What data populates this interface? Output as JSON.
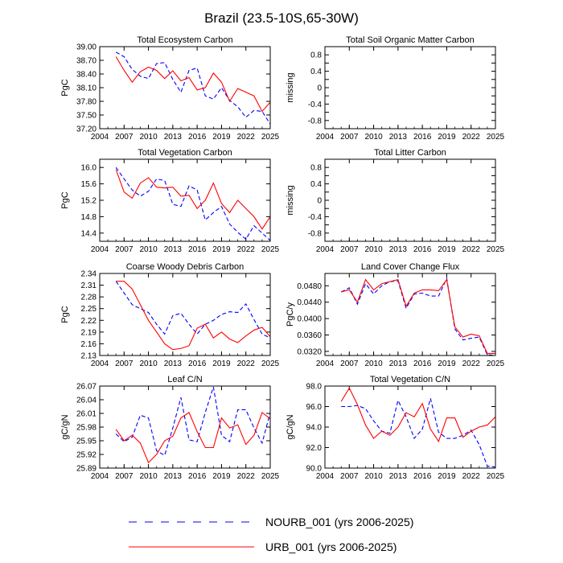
{
  "page": {
    "title": "Brazil (23.5-10S,65-30W)"
  },
  "legend": [
    {
      "label": "NOURB_001 (yrs 2006-2025)",
      "color": "#0000ff",
      "dash": true
    },
    {
      "label": "URB_001 (yrs 2006-2025)",
      "color": "#ff0000",
      "dash": false
    }
  ],
  "chart_data": [
    {
      "type": "line",
      "title": "Total Ecosystem Carbon",
      "ylabel": "PgC",
      "xlim": [
        2004,
        2025
      ],
      "ylim": [
        37.2,
        39.0
      ],
      "xticks": [
        "2004",
        "2007",
        "2010",
        "2013",
        "2016",
        "2019",
        "2022",
        "2025"
      ],
      "yticks": [
        "37.20",
        "37.50",
        "37.80",
        "38.10",
        "38.40",
        "38.70",
        "39.00"
      ],
      "x": [
        2006,
        2007,
        2008,
        2009,
        2010,
        2011,
        2012,
        2013,
        2014,
        2015,
        2016,
        2017,
        2018,
        2019,
        2020,
        2021,
        2022,
        2023,
        2024,
        2025
      ],
      "series": [
        {
          "name": "NOURB_001",
          "values": [
            38.88,
            38.78,
            38.5,
            38.35,
            38.3,
            38.63,
            38.65,
            38.28,
            38.0,
            38.48,
            38.53,
            37.92,
            37.85,
            38.1,
            37.82,
            37.68,
            37.45,
            37.6,
            37.58,
            37.3
          ]
        },
        {
          "name": "URB_001",
          "values": [
            38.78,
            38.48,
            38.22,
            38.45,
            38.55,
            38.48,
            38.3,
            38.47,
            38.25,
            38.32,
            38.05,
            38.1,
            38.42,
            38.22,
            37.8,
            38.08,
            38.0,
            37.92,
            37.58,
            37.78
          ]
        }
      ]
    },
    {
      "type": "line",
      "title": "Total Soil Organic Matter Carbon",
      "ylabel": "missing",
      "xlim": [
        2004,
        2025
      ],
      "ylim": [
        -1.0,
        1.0
      ],
      "xticks": [
        "2004",
        "2007",
        "2010",
        "2013",
        "2016",
        "2019",
        "2022",
        "2025"
      ],
      "yticks": [
        "-0.8",
        "-0.4",
        "0",
        "0.4",
        "0.8"
      ],
      "yticks_hidden": [
        "-0.6",
        "-0.2",
        "0.2",
        "0.6"
      ],
      "series": []
    },
    {
      "type": "line",
      "title": "Total Vegetation Carbon",
      "ylabel": "PgC",
      "xlim": [
        2004,
        2025
      ],
      "ylim": [
        14.2,
        16.2
      ],
      "xticks": [
        "2004",
        "2007",
        "2010",
        "2013",
        "2016",
        "2019",
        "2022",
        "2025"
      ],
      "yticks": [
        "14.4",
        "14.8",
        "15.2",
        "15.6",
        "16.0"
      ],
      "x": [
        2006,
        2007,
        2008,
        2009,
        2010,
        2011,
        2012,
        2013,
        2014,
        2015,
        2016,
        2017,
        2018,
        2019,
        2020,
        2021,
        2022,
        2023,
        2024,
        2025
      ],
      "series": [
        {
          "name": "NOURB_001",
          "values": [
            16.0,
            15.72,
            15.45,
            15.3,
            15.42,
            15.72,
            15.68,
            15.1,
            15.05,
            15.55,
            15.45,
            14.72,
            14.9,
            15.05,
            14.62,
            14.42,
            14.25,
            14.58,
            14.4,
            14.22
          ]
        },
        {
          "name": "URB_001",
          "values": [
            15.95,
            15.4,
            15.25,
            15.62,
            15.75,
            15.52,
            15.5,
            15.52,
            15.3,
            15.32,
            15.0,
            15.2,
            15.62,
            15.12,
            14.9,
            15.2,
            15.0,
            14.8,
            14.5,
            14.8
          ]
        }
      ]
    },
    {
      "type": "line",
      "title": "Total Litter Carbon",
      "ylabel": "missing",
      "xlim": [
        2004,
        2025
      ],
      "ylim": [
        -1.0,
        1.0
      ],
      "xticks": [
        "2004",
        "2007",
        "2010",
        "2013",
        "2016",
        "2019",
        "2022",
        "2025"
      ],
      "yticks": [
        "-0.8",
        "-0.4",
        "0",
        "0.4",
        "0.8"
      ],
      "yticks_hidden": [
        "-0.6",
        "-0.2",
        "0.2",
        "0.6"
      ],
      "series": []
    },
    {
      "type": "line",
      "title": "Coarse Woody Debris Carbon",
      "ylabel": "PgC",
      "xlim": [
        2004,
        2025
      ],
      "ylim": [
        2.13,
        2.34
      ],
      "xticks": [
        "2004",
        "2007",
        "2010",
        "2013",
        "2016",
        "2019",
        "2022",
        "2025"
      ],
      "yticks": [
        "2.13",
        "2.16",
        "2.19",
        "2.22",
        "2.25",
        "2.28",
        "2.31",
        "2.34"
      ],
      "x": [
        2006,
        2007,
        2008,
        2009,
        2010,
        2011,
        2012,
        2013,
        2014,
        2015,
        2016,
        2017,
        2018,
        2019,
        2020,
        2021,
        2022,
        2023,
        2024,
        2025
      ],
      "series": [
        {
          "name": "NOURB_001",
          "values": [
            2.32,
            2.29,
            2.26,
            2.25,
            2.24,
            2.21,
            2.185,
            2.232,
            2.238,
            2.21,
            2.185,
            2.21,
            2.22,
            2.235,
            2.242,
            2.24,
            2.262,
            2.222,
            2.185,
            2.175
          ]
        },
        {
          "name": "URB_001",
          "values": [
            2.32,
            2.32,
            2.3,
            2.26,
            2.22,
            2.19,
            2.16,
            2.145,
            2.148,
            2.155,
            2.2,
            2.21,
            2.175,
            2.19,
            2.172,
            2.163,
            2.18,
            2.195,
            2.202,
            2.178
          ]
        }
      ]
    },
    {
      "type": "line",
      "title": "Land Cover Change Flux",
      "ylabel": "PgC/y",
      "xlim": [
        2004,
        2025
      ],
      "ylim": [
        0.031,
        0.051
      ],
      "xticks": [
        "2004",
        "2007",
        "2010",
        "2013",
        "2016",
        "2019",
        "2022",
        "2025"
      ],
      "yticks": [
        "0.0320",
        "0.0360",
        "0.0400",
        "0.0440",
        "0.0480"
      ],
      "x": [
        2006,
        2007,
        2008,
        2009,
        2010,
        2011,
        2012,
        2013,
        2014,
        2015,
        2016,
        2017,
        2018,
        2019,
        2020,
        2021,
        2022,
        2023,
        2024,
        2025
      ],
      "series": [
        {
          "name": "NOURB_001",
          "values": [
            0.0465,
            0.0475,
            0.0435,
            0.0485,
            0.046,
            0.048,
            0.049,
            0.0492,
            0.0425,
            0.046,
            0.0462,
            0.0455,
            0.0455,
            0.0498,
            0.0375,
            0.0348,
            0.0352,
            0.0355,
            0.0312,
            0.031
          ]
        },
        {
          "name": "URB_001",
          "values": [
            0.0465,
            0.047,
            0.044,
            0.0495,
            0.047,
            0.0485,
            0.049,
            0.0495,
            0.043,
            0.0462,
            0.047,
            0.047,
            0.0468,
            0.0495,
            0.038,
            0.0355,
            0.0362,
            0.0358,
            0.0315,
            0.0315
          ]
        }
      ]
    },
    {
      "type": "line",
      "title": "Leaf C/N",
      "ylabel": "gC/gN",
      "xlim": [
        2004,
        2025
      ],
      "ylim": [
        25.89,
        26.07
      ],
      "xticks": [
        "2004",
        "2007",
        "2010",
        "2013",
        "2016",
        "2019",
        "2022",
        "2025"
      ],
      "yticks": [
        "25.89",
        "25.92",
        "25.95",
        "25.98",
        "26.01",
        "26.04",
        "26.07"
      ],
      "x": [
        2006,
        2007,
        2008,
        2009,
        2010,
        2011,
        2012,
        2013,
        2014,
        2015,
        2016,
        2017,
        2018,
        2019,
        2020,
        2021,
        2022,
        2023,
        2024,
        2025
      ],
      "series": [
        {
          "name": "NOURB_001",
          "values": [
            25.965,
            25.948,
            25.958,
            26.006,
            26.0,
            25.928,
            25.918,
            25.978,
            26.045,
            25.952,
            25.948,
            26.012,
            26.068,
            25.962,
            25.948,
            26.018,
            26.018,
            25.978,
            25.945,
            26.012
          ]
        },
        {
          "name": "URB_001",
          "values": [
            25.975,
            25.95,
            25.962,
            25.945,
            25.902,
            25.92,
            25.95,
            25.96,
            26.0,
            26.012,
            25.97,
            25.935,
            25.935,
            26.0,
            25.978,
            25.985,
            25.942,
            25.962,
            26.012,
            25.998
          ]
        }
      ]
    },
    {
      "type": "line",
      "title": "Total Vegetation C/N",
      "ylabel": "gC/gN",
      "xlim": [
        2004,
        2025
      ],
      "ylim": [
        90.0,
        98.0
      ],
      "xticks": [
        "2004",
        "2007",
        "2010",
        "2013",
        "2016",
        "2019",
        "2022",
        "2025"
      ],
      "yticks": [
        "90.0",
        "92.0",
        "94.0",
        "96.0",
        "98.0"
      ],
      "x": [
        2006,
        2007,
        2008,
        2009,
        2010,
        2011,
        2012,
        2013,
        2014,
        2015,
        2016,
        2017,
        2018,
        2019,
        2020,
        2021,
        2022,
        2023,
        2024,
        2025
      ],
      "series": [
        {
          "name": "NOURB_001",
          "values": [
            96.0,
            96.0,
            96.1,
            95.8,
            94.6,
            93.6,
            93.4,
            96.6,
            95.0,
            92.9,
            93.8,
            96.8,
            93.5,
            92.9,
            92.9,
            93.2,
            93.7,
            92.3,
            90.2,
            90.1
          ]
        },
        {
          "name": "URB_001",
          "values": [
            96.5,
            97.8,
            96.2,
            94.2,
            92.9,
            93.6,
            93.2,
            94.0,
            95.4,
            95.0,
            96.3,
            93.8,
            92.6,
            94.9,
            94.9,
            93.0,
            93.6,
            94.0,
            94.2,
            95.0
          ]
        }
      ]
    }
  ]
}
